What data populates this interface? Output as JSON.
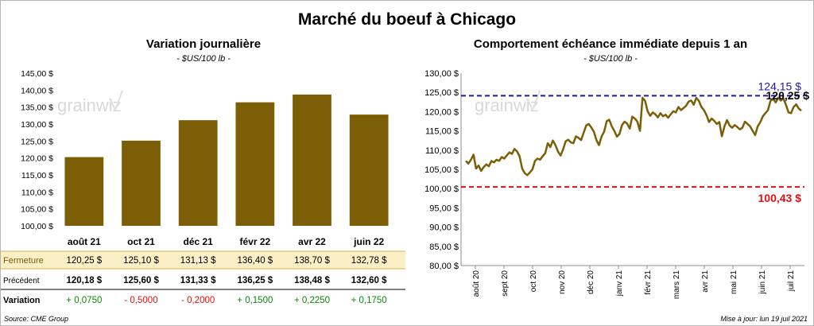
{
  "title": "Marché du boeuf à Chicago",
  "source": "Source: CME Group",
  "updated": "Mise à jour: lun 19 juil 2021",
  "watermark": "grainwiz",
  "colors": {
    "bar": "#7b5e06",
    "line": "#7b5e06",
    "upper": "#1f1a9e",
    "lower": "#e01010",
    "highlight": "#fbefc6",
    "up": "#0a8a0a",
    "down": "#e01010"
  },
  "chart_data": [
    {
      "type": "bar",
      "title": "Variation  journalière",
      "subtitle": "- $US/100 lb -",
      "categories": [
        "août 21",
        "oct 21",
        "déc 21",
        "févr 22",
        "avr 22",
        "juin 22"
      ],
      "values": [
        120.25,
        125.1,
        131.13,
        136.4,
        138.7,
        132.78
      ],
      "ylim": [
        100,
        145
      ],
      "yticks": [
        "100,00 $",
        "105,00 $",
        "110,00 $",
        "115,00 $",
        "120,00 $",
        "125,00 $",
        "130,00 $",
        "135,00 $",
        "140,00 $",
        "145,00 $"
      ],
      "table": {
        "rows": [
          {
            "label": "Fermeture",
            "cells": [
              "120,25  $",
              "125,10  $",
              "131,13  $",
              "136,40  $",
              "138,70  $",
              "132,78  $"
            ]
          },
          {
            "label": "Précédent",
            "cells": [
              "120,18  $",
              "125,60  $",
              "131,33  $",
              "136,25  $",
              "138,48  $",
              "132,60  $"
            ]
          },
          {
            "label": "Variation",
            "cells": [
              "+ 0,0750",
              "- 0,5000",
              "- 0,2000",
              "+ 0,1500",
              "+ 0,2250",
              "+ 0,1750"
            ]
          }
        ]
      }
    },
    {
      "type": "line",
      "title": "Comportement  échéance immédiate depuis 1 an",
      "subtitle": "- $US/100 lb -",
      "ylim": [
        80,
        130
      ],
      "yticks": [
        "80,00 $",
        "85,00 $",
        "90,00 $",
        "95,00 $",
        "100,00 $",
        "105,00 $",
        "110,00 $",
        "115,00 $",
        "120,00 $",
        "125,00 $",
        "130,00 $"
      ],
      "xticks": [
        "août 20",
        "sept 20",
        "oct 20",
        "nov 20",
        "déc 20",
        "janv 21",
        "févr 21",
        "mars 21",
        "avr 21",
        "mai 21",
        "juin 21",
        "juil 21"
      ],
      "upper_ref": {
        "value": 124.15,
        "label": "124,15 $"
      },
      "lower_ref": {
        "value": 100.43,
        "label": "100,43 $"
      },
      "last": {
        "value": 120.25,
        "label": "120,25 $"
      },
      "series": [
        {
          "values": [
            107.2,
            106.5,
            107.5,
            108.8,
            105.2,
            106.0,
            104.6,
            105.6,
            106.3,
            105.8,
            107.2,
            106.8,
            107.5,
            107.2,
            108.2,
            107.8,
            108.6,
            109.4,
            109.0,
            110.3,
            109.7,
            108.4,
            105.2,
            104.0,
            103.5,
            104.2,
            105.0,
            107.2,
            107.8,
            107.5,
            108.4,
            109.2,
            111.8,
            110.8,
            112.5,
            111.3,
            109.6,
            108.6,
            110.2,
            112.3,
            112.7,
            112.0,
            111.8,
            113.6,
            113.2,
            112.6,
            114.5,
            116.4,
            116.8,
            115.9,
            114.8,
            112.6,
            111.3,
            113.5,
            114.8,
            117.5,
            117.9,
            116.2,
            115.0,
            113.5,
            114.2,
            116.5,
            117.4,
            116.9,
            115.6,
            118.7,
            118.2,
            117.4,
            115.0,
            123.6,
            122.8,
            120.1,
            118.9,
            119.8,
            119.3,
            118.5,
            119.6,
            118.8,
            119.2,
            118.4,
            119.3,
            120.1,
            119.8,
            121.2,
            120.4,
            120.9,
            121.5,
            122.6,
            122.9,
            121.8,
            123.6,
            122.8,
            121.2,
            120.4,
            119.1,
            117.3,
            118.2,
            117.6,
            116.8,
            117.3,
            113.6,
            116.2,
            117.8,
            116.4,
            115.8,
            116.5,
            116.0,
            115.4,
            115.8,
            117.4,
            116.8,
            116.2,
            115.0,
            113.9,
            116.2,
            117.3,
            118.8,
            119.6,
            120.4,
            122.8,
            123.3,
            122.4,
            123.6,
            122.9,
            123.4,
            121.8,
            119.8,
            119.6,
            121.2,
            121.9,
            120.8,
            120.25
          ]
        }
      ]
    }
  ]
}
